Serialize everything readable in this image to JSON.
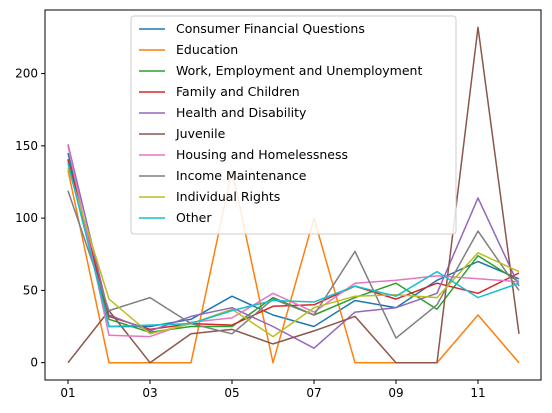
{
  "chart_data": {
    "type": "line",
    "categories": [
      "01",
      "02",
      "03",
      "04",
      "05",
      "06",
      "07",
      "08",
      "09",
      "10",
      "11",
      "12"
    ],
    "x_tick_labels": [
      "01",
      "03",
      "05",
      "07",
      "09",
      "11"
    ],
    "y_ticks": [
      0,
      50,
      100,
      150,
      200
    ],
    "ylim": [
      -12,
      244
    ],
    "grid": false,
    "legend_position": "top-center",
    "series": [
      {
        "name": "Consumer Financial Questions",
        "color": "#1f77b4",
        "values": [
          145,
          25,
          25,
          30,
          46,
          33,
          25,
          43,
          38,
          57,
          70,
          58
        ]
      },
      {
        "name": "Education",
        "color": "#ff7f0e",
        "values": [
          133,
          0,
          0,
          0,
          133,
          0,
          100,
          0,
          0,
          0,
          33,
          0
        ]
      },
      {
        "name": "Work, Employment and Unemployment",
        "color": "#2ca02c",
        "values": [
          141,
          30,
          21,
          25,
          25,
          45,
          33,
          45,
          55,
          37,
          74,
          56
        ]
      },
      {
        "name": "Family and Children",
        "color": "#d62728",
        "values": [
          140,
          32,
          23,
          27,
          26,
          39,
          40,
          53,
          44,
          55,
          48,
          62
        ]
      },
      {
        "name": "Health and Disability",
        "color": "#9467bd",
        "values": [
          151,
          33,
          22,
          32,
          38,
          25,
          10,
          35,
          38,
          48,
          114,
          53
        ]
      },
      {
        "name": "Juvenile",
        "color": "#8c564b",
        "values": [
          0,
          36,
          0,
          20,
          23,
          13,
          22,
          32,
          0,
          0,
          232,
          20
        ]
      },
      {
        "name": "Housing and Homelessness",
        "color": "#e377c2",
        "values": [
          150,
          19,
          18,
          28,
          31,
          48,
          35,
          55,
          57,
          60,
          58,
          56
        ]
      },
      {
        "name": "Income Maintenance",
        "color": "#7f7f7f",
        "values": [
          119,
          36,
          45,
          27,
          20,
          44,
          33,
          77,
          17,
          40,
          91,
          50
        ]
      },
      {
        "name": "Individual Rights",
        "color": "#bcbd22",
        "values": [
          135,
          44,
          20,
          27,
          37,
          18,
          38,
          46,
          47,
          45,
          76,
          63
        ]
      },
      {
        "name": "Other",
        "color": "#17becf",
        "values": [
          138,
          25,
          26,
          27,
          36,
          43,
          42,
          53,
          46,
          63,
          45,
          55
        ]
      }
    ]
  }
}
